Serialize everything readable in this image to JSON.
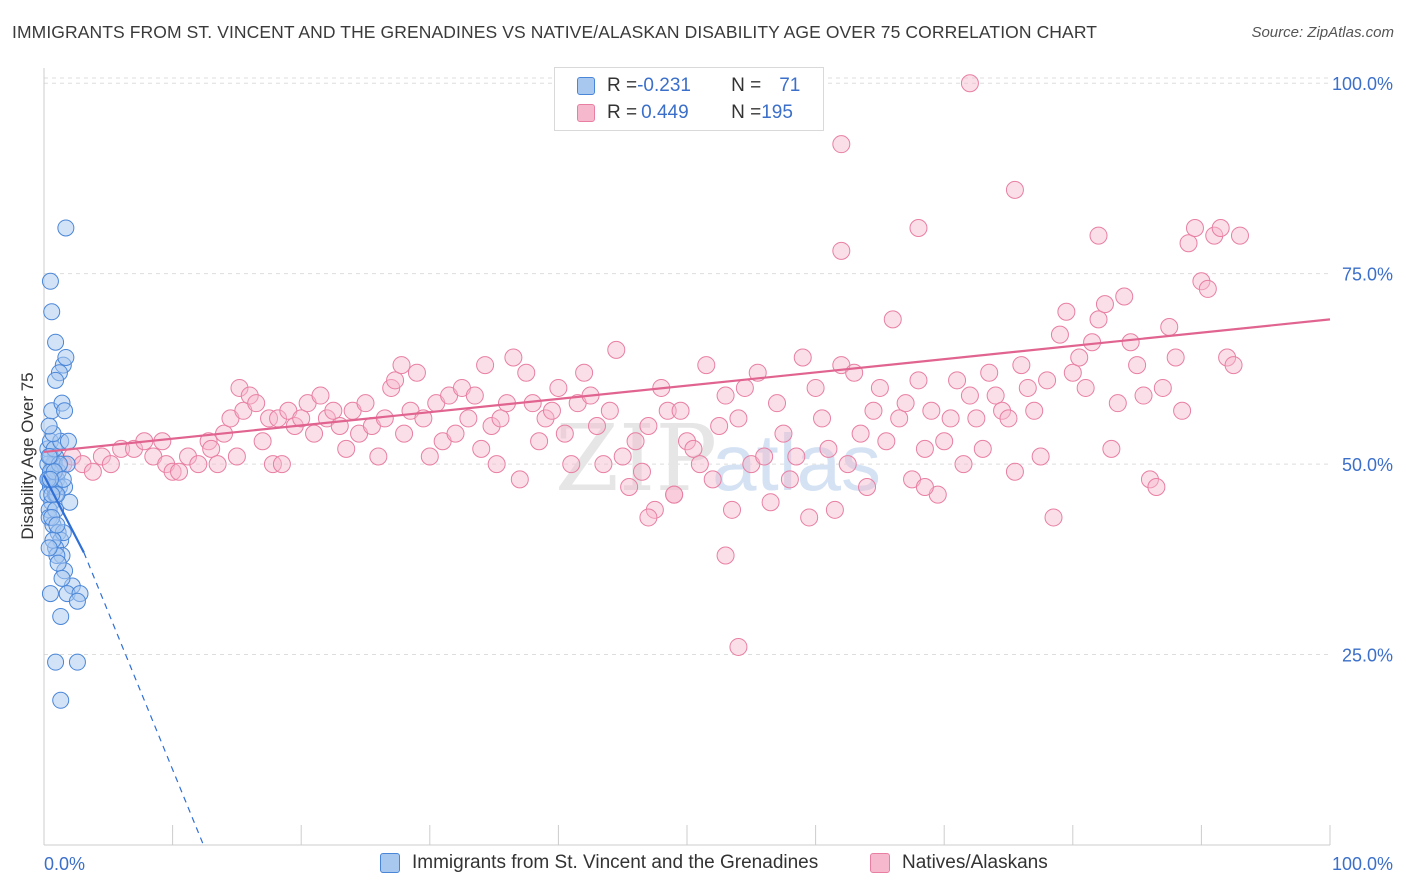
{
  "header": {
    "title": "IMMIGRANTS FROM ST. VINCENT AND THE GRENADINES VS NATIVE/ALASKAN DISABILITY AGE OVER 75 CORRELATION CHART",
    "source": "Source: ZipAtlas.com"
  },
  "legend": {
    "rows": [
      {
        "r_label": "R = ",
        "r_value": "-0.231",
        "n_label": "N = ",
        "n_value": "71"
      },
      {
        "r_label": "R = ",
        "r_value": "0.449",
        "n_label": "N = ",
        "n_value": "195"
      }
    ]
  },
  "bottom_legend": {
    "series1": "Immigrants from St. Vincent and the Grenadines",
    "series2": "Natives/Alaskans"
  },
  "watermark": {
    "zip": "ZIP",
    "atlas": "atlas"
  },
  "colors": {
    "blue_fill": "#a8c8f0",
    "blue_stroke": "#4a86d8",
    "blue_line": "#2f6fd6",
    "pink_fill": "#f6b8cd",
    "pink_stroke": "#e87fa3",
    "pink_line": "#e0648f",
    "tick_label": "#3b6fc9",
    "grid": "#dddddd"
  },
  "chart_data": {
    "type": "scatter",
    "title": "IMMIGRANTS FROM ST. VINCENT AND THE GRENADINES VS NATIVE/ALASKAN DISABILITY AGE OVER 75 CORRELATION CHART",
    "xlabel": "",
    "ylabel": "Disability Age Over 75",
    "xlim": [
      0,
      100
    ],
    "ylim": [
      0,
      102
    ],
    "x_tick_labels": [
      "0.0%",
      "100.0%"
    ],
    "y_tick_labels": [
      "25.0%",
      "50.0%",
      "75.0%",
      "100.0%"
    ],
    "y_ticks": [
      25,
      50,
      75,
      100
    ],
    "grid": true,
    "legend_position": "top-center",
    "series": [
      {
        "name": "Immigrants from St. Vincent and the Grenadines",
        "r": -0.231,
        "n": 71,
        "trend": {
          "x0": 0,
          "y0": 48.5,
          "x1": 3.1,
          "y1": 38.4,
          "dash_x1": 12.4,
          "dash_y1": 0
        },
        "points": [
          [
            0.5,
            47
          ],
          [
            0.3,
            46
          ],
          [
            0.6,
            49
          ],
          [
            0.4,
            48
          ],
          [
            0.7,
            50
          ],
          [
            0.9,
            51
          ],
          [
            0.3,
            52
          ],
          [
            0.5,
            53
          ],
          [
            0.8,
            50
          ],
          [
            1.0,
            48
          ],
          [
            1.2,
            47
          ],
          [
            0.6,
            45
          ],
          [
            0.4,
            44
          ],
          [
            0.9,
            46
          ],
          [
            1.1,
            49
          ],
          [
            0.3,
            50
          ],
          [
            0.5,
            51
          ],
          [
            0.8,
            52
          ],
          [
            1.3,
            53
          ],
          [
            0.7,
            54
          ],
          [
            0.4,
            55
          ],
          [
            0.6,
            57
          ],
          [
            1.4,
            58
          ],
          [
            1.6,
            57
          ],
          [
            1.5,
            63
          ],
          [
            1.7,
            64
          ],
          [
            1.2,
            62
          ],
          [
            0.9,
            66
          ],
          [
            0.6,
            70
          ],
          [
            0.5,
            74
          ],
          [
            1.7,
            81
          ],
          [
            0.9,
            61
          ],
          [
            1.9,
            53
          ],
          [
            1.8,
            50
          ],
          [
            1.6,
            47
          ],
          [
            2.0,
            45
          ],
          [
            0.4,
            43
          ],
          [
            0.7,
            42
          ],
          [
            1.1,
            41
          ],
          [
            1.3,
            40
          ],
          [
            0.9,
            39
          ],
          [
            1.4,
            38
          ],
          [
            1.0,
            38
          ],
          [
            1.6,
            36
          ],
          [
            2.2,
            34
          ],
          [
            1.8,
            33
          ],
          [
            2.8,
            33
          ],
          [
            0.5,
            33
          ],
          [
            2.6,
            32
          ],
          [
            1.3,
            30
          ],
          [
            0.5,
            49
          ],
          [
            0.8,
            47
          ],
          [
            1.0,
            46
          ],
          [
            1.5,
            41
          ],
          [
            0.7,
            40
          ],
          [
            0.4,
            39
          ],
          [
            1.1,
            37
          ],
          [
            1.4,
            35
          ],
          [
            0.9,
            24
          ],
          [
            2.6,
            24
          ],
          [
            1.3,
            19
          ],
          [
            0.3,
            48
          ],
          [
            0.6,
            46
          ],
          [
            0.9,
            44
          ],
          [
            1.2,
            50
          ],
          [
            0.4,
            51
          ],
          [
            0.8,
            49
          ],
          [
            1.5,
            48
          ],
          [
            0.6,
            43
          ],
          [
            1.0,
            42
          ],
          [
            0.5,
            48
          ]
        ]
      },
      {
        "name": "Natives/Alaskans",
        "r": 0.449,
        "n": 195,
        "trend": {
          "x0": 0,
          "y0": 51.6,
          "x1": 100,
          "y1": 69.0
        },
        "points": [
          [
            0.8,
            49
          ],
          [
            1.5,
            50
          ],
          [
            2.2,
            51
          ],
          [
            3.0,
            50
          ],
          [
            3.8,
            49
          ],
          [
            4.5,
            51
          ],
          [
            5.2,
            50
          ],
          [
            6.0,
            52
          ],
          [
            7.0,
            52
          ],
          [
            7.8,
            53
          ],
          [
            8.5,
            51
          ],
          [
            9.2,
            53
          ],
          [
            9.5,
            50
          ],
          [
            10.0,
            49
          ],
          [
            10.5,
            49
          ],
          [
            11.2,
            51
          ],
          [
            12.0,
            50
          ],
          [
            12.8,
            53
          ],
          [
            13.0,
            52
          ],
          [
            13.5,
            50
          ],
          [
            14.0,
            54
          ],
          [
            14.5,
            56
          ],
          [
            15.0,
            51
          ],
          [
            15.2,
            60
          ],
          [
            15.5,
            57
          ],
          [
            16.0,
            59
          ],
          [
            16.5,
            58
          ],
          [
            17.0,
            53
          ],
          [
            17.5,
            56
          ],
          [
            17.8,
            50
          ],
          [
            18.2,
            56
          ],
          [
            18.5,
            50
          ],
          [
            19.0,
            57
          ],
          [
            19.5,
            55
          ],
          [
            20.0,
            56
          ],
          [
            20.5,
            58
          ],
          [
            21.0,
            54
          ],
          [
            21.5,
            59
          ],
          [
            22.0,
            56
          ],
          [
            22.5,
            57
          ],
          [
            23.0,
            55
          ],
          [
            23.5,
            52
          ],
          [
            24.0,
            57
          ],
          [
            24.5,
            54
          ],
          [
            25.0,
            58
          ],
          [
            25.5,
            55
          ],
          [
            26.0,
            51
          ],
          [
            26.5,
            56
          ],
          [
            27.0,
            60
          ],
          [
            27.3,
            61
          ],
          [
            27.8,
            63
          ],
          [
            28.0,
            54
          ],
          [
            28.5,
            57
          ],
          [
            29.0,
            62
          ],
          [
            29.5,
            56
          ],
          [
            30.0,
            51
          ],
          [
            30.5,
            58
          ],
          [
            31.0,
            53
          ],
          [
            31.5,
            59
          ],
          [
            32.0,
            54
          ],
          [
            32.5,
            60
          ],
          [
            33.0,
            56
          ],
          [
            33.5,
            59
          ],
          [
            34.0,
            52
          ],
          [
            34.3,
            63
          ],
          [
            34.8,
            55
          ],
          [
            35.2,
            50
          ],
          [
            35.5,
            56
          ],
          [
            36.0,
            58
          ],
          [
            36.5,
            64
          ],
          [
            37.0,
            48
          ],
          [
            37.5,
            62
          ],
          [
            38.0,
            58
          ],
          [
            38.5,
            53
          ],
          [
            39.0,
            56
          ],
          [
            39.5,
            57
          ],
          [
            40.0,
            60
          ],
          [
            40.5,
            54
          ],
          [
            41.0,
            50
          ],
          [
            41.5,
            58
          ],
          [
            42.0,
            62
          ],
          [
            42.5,
            59
          ],
          [
            43.0,
            55
          ],
          [
            43.5,
            50
          ],
          [
            44.0,
            57
          ],
          [
            44.5,
            65
          ],
          [
            45.0,
            51
          ],
          [
            45.5,
            47
          ],
          [
            46.0,
            53
          ],
          [
            46.5,
            49
          ],
          [
            47.0,
            55
          ],
          [
            47.5,
            44
          ],
          [
            48.0,
            60
          ],
          [
            48.5,
            57
          ],
          [
            49.0,
            46
          ],
          [
            49.5,
            57
          ],
          [
            50.0,
            53
          ],
          [
            50.5,
            52
          ],
          [
            51.0,
            50
          ],
          [
            51.5,
            63
          ],
          [
            52.0,
            48
          ],
          [
            52.5,
            55
          ],
          [
            53.0,
            59
          ],
          [
            53.5,
            44
          ],
          [
            54.0,
            56
          ],
          [
            54.5,
            60
          ],
          [
            55.0,
            50
          ],
          [
            55.5,
            62
          ],
          [
            56.0,
            51
          ],
          [
            56.5,
            45
          ],
          [
            57.0,
            58
          ],
          [
            57.5,
            54
          ],
          [
            58.0,
            48
          ],
          [
            58.5,
            51
          ],
          [
            59.0,
            64
          ],
          [
            59.5,
            43
          ],
          [
            60.0,
            60
          ],
          [
            60.5,
            56
          ],
          [
            61.0,
            52
          ],
          [
            61.5,
            44
          ],
          [
            62.0,
            63
          ],
          [
            62.5,
            50
          ],
          [
            63.0,
            62
          ],
          [
            63.5,
            54
          ],
          [
            64.0,
            47
          ],
          [
            64.5,
            57
          ],
          [
            65.0,
            60
          ],
          [
            65.5,
            53
          ],
          [
            66.0,
            69
          ],
          [
            66.5,
            56
          ],
          [
            67.0,
            58
          ],
          [
            67.5,
            48
          ],
          [
            68.0,
            61
          ],
          [
            68.5,
            52
          ],
          [
            69.0,
            57
          ],
          [
            69.5,
            46
          ],
          [
            70.0,
            53
          ],
          [
            70.5,
            56
          ],
          [
            71.0,
            61
          ],
          [
            71.5,
            50
          ],
          [
            72.0,
            59
          ],
          [
            72.5,
            56
          ],
          [
            73.0,
            52
          ],
          [
            73.5,
            62
          ],
          [
            74.0,
            59
          ],
          [
            74.5,
            57
          ],
          [
            75.0,
            56
          ],
          [
            75.5,
            49
          ],
          [
            76.0,
            63
          ],
          [
            76.5,
            60
          ],
          [
            77.0,
            57
          ],
          [
            77.5,
            51
          ],
          [
            78.0,
            61
          ],
          [
            78.5,
            43
          ],
          [
            79.0,
            67
          ],
          [
            79.5,
            70
          ],
          [
            80.0,
            62
          ],
          [
            80.5,
            64
          ],
          [
            81.0,
            60
          ],
          [
            81.5,
            66
          ],
          [
            82.0,
            69
          ],
          [
            82.5,
            71
          ],
          [
            83.0,
            52
          ],
          [
            83.5,
            58
          ],
          [
            84.0,
            72
          ],
          [
            84.5,
            66
          ],
          [
            85.0,
            63
          ],
          [
            85.5,
            59
          ],
          [
            86.0,
            48
          ],
          [
            86.5,
            47
          ],
          [
            87.0,
            60
          ],
          [
            87.5,
            68
          ],
          [
            88.0,
            64
          ],
          [
            88.5,
            57
          ],
          [
            89.0,
            79
          ],
          [
            89.5,
            81
          ],
          [
            90.0,
            74
          ],
          [
            90.5,
            73
          ],
          [
            91.0,
            80
          ],
          [
            91.5,
            81
          ],
          [
            92.0,
            64
          ],
          [
            92.5,
            63
          ],
          [
            93.0,
            80
          ],
          [
            58.0,
            98
          ],
          [
            62.0,
            92
          ],
          [
            72.0,
            100
          ],
          [
            75.5,
            86
          ],
          [
            82.0,
            80
          ],
          [
            68.0,
            81
          ],
          [
            62.0,
            78
          ],
          [
            47.0,
            43
          ],
          [
            49.0,
            46
          ],
          [
            53.0,
            38
          ],
          [
            68.5,
            47
          ],
          [
            54.0,
            26
          ]
        ]
      }
    ]
  }
}
